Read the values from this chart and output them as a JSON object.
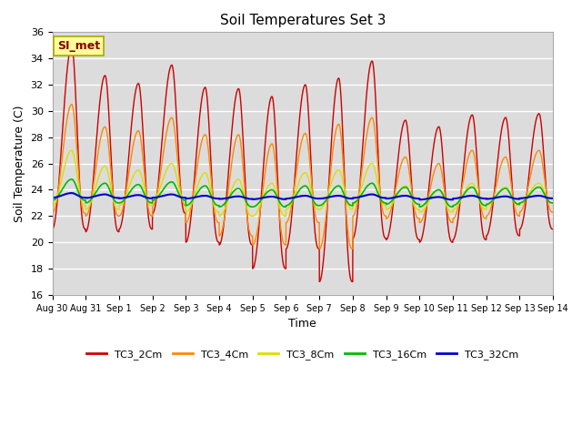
{
  "title": "Soil Temperatures Set 3",
  "xlabel": "Time",
  "ylabel": "Soil Temperature (C)",
  "ylim": [
    16,
    36
  ],
  "background_color": "#dcdcdc",
  "figure_bg": "#ffffff",
  "annotation_text": "SI_met",
  "annotation_bg": "#ffff99",
  "annotation_edge": "#aaa800",
  "series": [
    {
      "label": "TC3_2Cm",
      "color": "#cc0000",
      "linewidth": 1.0
    },
    {
      "label": "TC3_4Cm",
      "color": "#ff8800",
      "linewidth": 1.0
    },
    {
      "label": "TC3_8Cm",
      "color": "#dddd00",
      "linewidth": 1.0
    },
    {
      "label": "TC3_16Cm",
      "color": "#00bb00",
      "linewidth": 1.2
    },
    {
      "label": "TC3_32Cm",
      "color": "#0000cc",
      "linewidth": 1.5
    }
  ],
  "tick_labels": [
    "Aug 30",
    "Aug 31",
    "Sep 1",
    "Sep 2",
    "Sep 3",
    "Sep 4",
    "Sep 5",
    "Sep 6",
    "Sep 7",
    "Sep 8",
    "Sep 9",
    "Sep 10",
    "Sep 11",
    "Sep 12",
    "Sep 13",
    "Sep 14"
  ],
  "yticks": [
    16,
    18,
    20,
    22,
    24,
    26,
    28,
    30,
    32,
    34,
    36
  ]
}
